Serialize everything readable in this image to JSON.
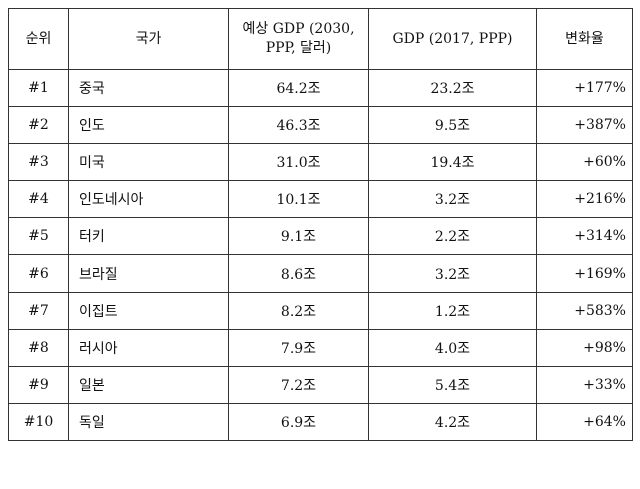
{
  "table": {
    "headers": {
      "rank": "순위",
      "country": "국가",
      "gdp2030_line1": "예상 GDP (2030,",
      "gdp2030_line2": "PPP, 달러)",
      "gdp2017": "GDP (2017, PPP)",
      "change": "변화율"
    },
    "rows": [
      {
        "rank": "#1",
        "country": "중국",
        "gdp2030": "64.2조",
        "gdp2017": "23.2조",
        "change": "+177%"
      },
      {
        "rank": "#2",
        "country": "인도",
        "gdp2030": "46.3조",
        "gdp2017": "9.5조",
        "change": "+387%"
      },
      {
        "rank": "#3",
        "country": "미국",
        "gdp2030": "31.0조",
        "gdp2017": "19.4조",
        "change": "+60%"
      },
      {
        "rank": "#4",
        "country": "인도네시아",
        "gdp2030": "10.1조",
        "gdp2017": "3.2조",
        "change": "+216%"
      },
      {
        "rank": "#5",
        "country": "터키",
        "gdp2030": "9.1조",
        "gdp2017": "2.2조",
        "change": "+314%"
      },
      {
        "rank": "#6",
        "country": "브라질",
        "gdp2030": "8.6조",
        "gdp2017": "3.2조",
        "change": "+169%"
      },
      {
        "rank": "#7",
        "country": "이집트",
        "gdp2030": "8.2조",
        "gdp2017": "1.2조",
        "change": "+583%"
      },
      {
        "rank": "#8",
        "country": "러시아",
        "gdp2030": "7.9조",
        "gdp2017": "4.0조",
        "change": "+98%"
      },
      {
        "rank": "#9",
        "country": "일본",
        "gdp2030": "7.2조",
        "gdp2017": "5.4조",
        "change": "+33%"
      },
      {
        "rank": "#10",
        "country": "독일",
        "gdp2030": "6.9조",
        "gdp2017": "4.2조",
        "change": "+64%"
      }
    ]
  }
}
